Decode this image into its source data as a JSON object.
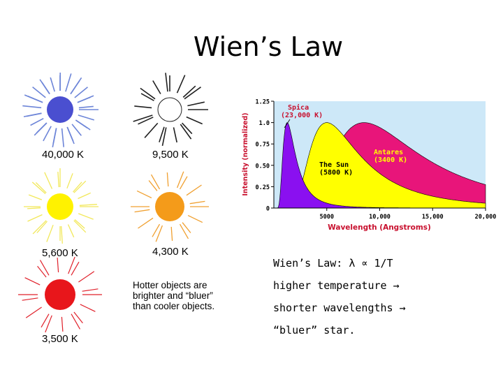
{
  "title": "Wien’s Law",
  "stars": [
    {
      "label": "40,000 K",
      "color": "#4a4fd0",
      "ray": "#6d85d8"
    },
    {
      "label": "9,500 K",
      "color": "#ffffff",
      "ray": "#202020"
    },
    {
      "label": "5,600 K",
      "color": "#fff200",
      "ray": "#f2e85a"
    },
    {
      "label": "4,300 K",
      "color": "#f49b1a",
      "ray": "#f0a030"
    },
    {
      "label": "3,500 K",
      "color": "#e8161b",
      "ray": "#e0202a"
    }
  ],
  "note": [
    "Hotter objects are",
    "brighter and “bluer”",
    "than cooler objects."
  ],
  "bullets": [
    "Wien’s Law: λ ∝ 1/T",
    "higher temperature →",
    "shorter wavelengths →",
    "“bluer” star."
  ],
  "chart_data": {
    "type": "area",
    "xlabel": "Wavelength (Angstroms)",
    "ylabel": "Intensity (normalized)",
    "xlim": [
      0,
      20000
    ],
    "ylim": [
      0,
      1.25
    ],
    "x_ticks": [
      "5000",
      "10,000",
      "15,000",
      "20,000"
    ],
    "y_ticks": [
      "0",
      "0.25",
      "0.50",
      "0.75",
      "1.0",
      "1.25"
    ],
    "series": [
      {
        "name": "Antares (3400 K)",
        "color": "#e8157a",
        "peak_x": 8500,
        "temperature": 3400
      },
      {
        "name": "The Sun (5800 K)",
        "color": "#ffff00",
        "peak_x": 5000,
        "temperature": 5800
      },
      {
        "name": "Spica (23,000 K)",
        "color": "#8a10f0",
        "peak_x": 1260,
        "temperature": 23000
      }
    ],
    "annotations": [
      {
        "text": "Spica",
        "series": "Spica (23,000 K)"
      },
      {
        "text": "(23,000 K)",
        "series": "Spica (23,000 K)"
      },
      {
        "text": "The Sun",
        "series": "The Sun (5800 K)"
      },
      {
        "text": "(5800 K)",
        "series": "The Sun (5800 K)"
      },
      {
        "text": "Antares",
        "series": "Antares (3400 K)"
      },
      {
        "text": "(3400 K)",
        "series": "Antares (3400 K)"
      }
    ],
    "plot_background": "#cde8f8",
    "label_color": "#c8102e"
  }
}
